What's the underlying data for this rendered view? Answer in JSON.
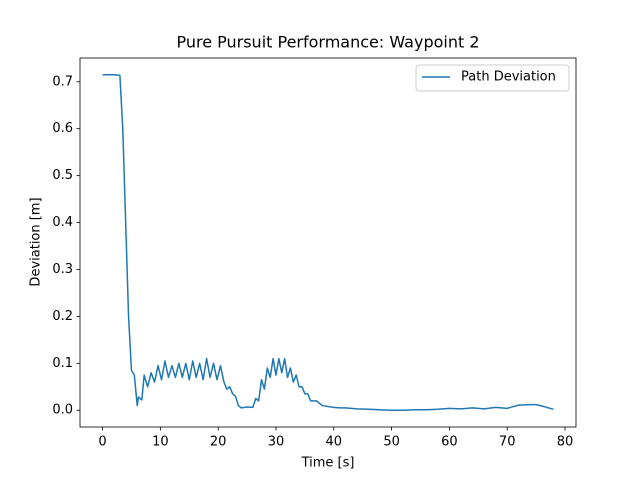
{
  "chart_data": {
    "type": "line",
    "title": "Pure Pursuit Performance: Waypoint 2",
    "xlabel": "Time [s]",
    "ylabel": "Deviation [m]",
    "x": [
      0,
      1,
      2,
      3,
      3.5,
      4,
      4.5,
      5,
      5.5,
      6,
      6.2,
      6.8,
      7.2,
      7.8,
      8.4,
      9,
      9.6,
      10.2,
      10.8,
      11.4,
      12,
      12.6,
      13.2,
      13.8,
      14.4,
      15,
      15.6,
      16.2,
      16.8,
      17.4,
      18,
      18.6,
      19.2,
      19.8,
      20.4,
      21,
      21.5,
      22,
      22.5,
      23,
      23.5,
      24,
      25,
      26,
      26.5,
      27,
      27.5,
      28,
      28.5,
      29,
      29.5,
      30,
      30.5,
      31,
      31.5,
      32,
      32.5,
      33,
      33.5,
      34,
      34.5,
      35,
      35.5,
      36,
      37,
      38,
      39,
      40,
      41,
      42,
      43,
      44,
      46,
      48,
      50,
      52,
      54,
      56,
      58,
      60,
      62,
      64,
      66,
      68,
      70,
      72,
      74,
      75,
      76,
      78
    ],
    "series": [
      {
        "name": "Path Deviation",
        "color": "#1f77b4",
        "values": [
          0.715,
          0.715,
          0.715,
          0.714,
          0.6,
          0.4,
          0.2,
          0.085,
          0.075,
          0.01,
          0.028,
          0.022,
          0.075,
          0.05,
          0.08,
          0.06,
          0.095,
          0.065,
          0.105,
          0.07,
          0.095,
          0.07,
          0.1,
          0.07,
          0.1,
          0.065,
          0.105,
          0.07,
          0.1,
          0.065,
          0.11,
          0.07,
          0.1,
          0.065,
          0.095,
          0.06,
          0.045,
          0.05,
          0.035,
          0.03,
          0.01,
          0.005,
          0.007,
          0.006,
          0.025,
          0.02,
          0.065,
          0.045,
          0.09,
          0.07,
          0.11,
          0.075,
          0.11,
          0.08,
          0.11,
          0.07,
          0.09,
          0.06,
          0.075,
          0.05,
          0.05,
          0.035,
          0.035,
          0.02,
          0.02,
          0.01,
          0.008,
          0.006,
          0.005,
          0.005,
          0.004,
          0.003,
          0.002,
          0.001,
          0,
          0,
          0.001,
          0.001,
          0.002,
          0.004,
          0.003,
          0.005,
          0.003,
          0.006,
          0.004,
          0.011,
          0.012,
          0.012,
          0.009,
          0.002
        ]
      }
    ],
    "xlim": [
      -3.9,
      81.9
    ],
    "xticks": [
      0,
      10,
      20,
      30,
      40,
      50,
      60,
      70,
      80
    ],
    "ylim": [
      -0.0357,
      0.7507
    ],
    "yticks": [
      {
        "value": 0,
        "label": "0.0"
      },
      0.1,
      0.2,
      0.3,
      0.4,
      0.5,
      0.6,
      0.7
    ],
    "legend": "upper right",
    "grid": false
  }
}
